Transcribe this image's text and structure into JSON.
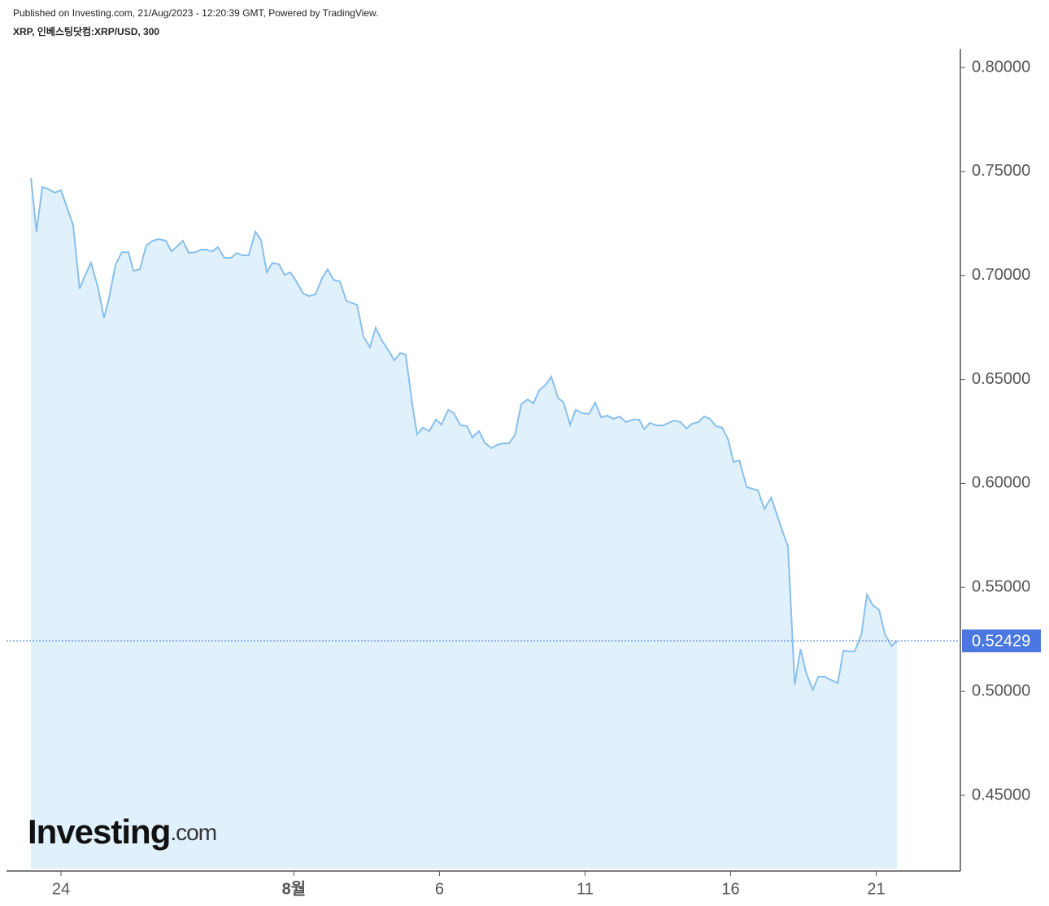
{
  "header": {
    "published": "Published on Investing.com, 21/Aug/2023 - 12:20:39 GMT, Powered by TradingView.",
    "symbol": "XRP, 인베스팅닷컴:XRP/USD, 300"
  },
  "logo": {
    "name": "Investing",
    "suffix": ".com"
  },
  "chart_data": {
    "type": "area",
    "x": [
      22.97,
      23.16,
      23.36,
      23.55,
      23.78,
      24.0,
      24.42,
      24.64,
      24.81,
      25.03,
      25.26,
      25.48,
      25.65,
      25.87,
      26.09,
      26.32,
      26.49,
      26.71,
      26.93,
      27.15,
      27.37,
      27.6,
      27.8,
      27.99,
      28.19,
      28.39,
      28.61,
      28.8,
      29.0,
      29.2,
      29.39,
      29.61,
      29.84,
      30.03,
      30.23,
      30.45,
      30.68,
      30.87,
      31.07,
      31.26,
      31.49,
      31.68,
      31.88,
      32.07,
      32.32,
      32.52,
      32.74,
      32.97,
      33.16,
      33.36,
      33.58,
      33.8,
      34.17,
      34.39,
      34.61,
      34.81,
      35.01,
      35.23,
      35.45,
      35.65,
      35.84,
      36.07,
      36.23,
      36.43,
      36.65,
      36.88,
      37.07,
      37.3,
      37.49,
      37.72,
      37.94,
      38.13,
      38.36,
      38.55,
      38.78,
      38.97,
      39.2,
      39.39,
      39.59,
      39.81,
      40.03,
      40.23,
      40.42,
      40.65,
      40.84,
      41.07,
      41.26,
      41.49,
      41.68,
      41.91,
      42.13,
      42.35,
      42.55,
      42.77,
      42.97,
      43.19,
      43.41,
      43.64,
      43.86,
      44.03,
      44.22,
      44.45,
      44.67,
      44.87,
      45.06,
      45.28,
      45.48,
      45.68,
      45.9,
      46.09,
      46.29,
      46.49,
      46.71,
      46.91,
      47.1,
      47.3,
      47.55,
      47.94,
      48.16,
      48.39,
      48.58,
      48.78,
      48.97,
      49.2,
      49.4,
      49.59,
      49.82,
      50.01,
      50.23,
      50.45,
      50.68,
      50.87,
      51.07,
      51.26,
      51.49,
      51.68,
      51.88,
      52.1,
      52.3,
      52.53,
      52.72
    ],
    "series": [
      {
        "name": "XRP/USD",
        "color": "#88bfec",
        "fill": "#e1f1fb",
        "values": [
          0.7468,
          0.721,
          0.7425,
          0.7417,
          0.7398,
          0.741,
          0.7241,
          0.6936,
          0.6995,
          0.7061,
          0.6948,
          0.6796,
          0.6889,
          0.705,
          0.7112,
          0.7112,
          0.7022,
          0.703,
          0.7144,
          0.7167,
          0.7175,
          0.7167,
          0.7116,
          0.714,
          0.7167,
          0.7108,
          0.7112,
          0.7124,
          0.7124,
          0.7116,
          0.7136,
          0.7085,
          0.7085,
          0.7108,
          0.7097,
          0.7097,
          0.721,
          0.7171,
          0.7015,
          0.7061,
          0.7054,
          0.7003,
          0.7015,
          0.6975,
          0.6913,
          0.6901,
          0.6909,
          0.6987,
          0.703,
          0.6979,
          0.6971,
          0.6878,
          0.6858,
          0.6706,
          0.6655,
          0.6749,
          0.669,
          0.6643,
          0.6592,
          0.6627,
          0.662,
          0.6377,
          0.6236,
          0.6268,
          0.6252,
          0.6307,
          0.6283,
          0.6354,
          0.6338,
          0.628,
          0.6276,
          0.6221,
          0.6252,
          0.6197,
          0.617,
          0.6185,
          0.6193,
          0.6193,
          0.6232,
          0.6381,
          0.6404,
          0.6385,
          0.6447,
          0.6475,
          0.6514,
          0.6412,
          0.6389,
          0.6283,
          0.6354,
          0.6338,
          0.6334,
          0.6389,
          0.6318,
          0.6326,
          0.6311,
          0.6322,
          0.6295,
          0.6307,
          0.6307,
          0.626,
          0.6291,
          0.6279,
          0.6279,
          0.6291,
          0.6303,
          0.6295,
          0.6264,
          0.6287,
          0.6295,
          0.6322,
          0.6311,
          0.6276,
          0.6268,
          0.6213,
          0.6103,
          0.6111,
          0.5982,
          0.5967,
          0.5877,
          0.5932,
          0.5853,
          0.5771,
          0.5697,
          0.5032,
          0.5204,
          0.5091,
          0.5008,
          0.5071,
          0.5071,
          0.5055,
          0.504,
          0.5196,
          0.5192,
          0.5192,
          0.5274,
          0.5466,
          0.5415,
          0.5392,
          0.5274,
          0.5219,
          0.5243
        ]
      }
    ],
    "last_price": 0.52429,
    "last_price_color": "#4a78e0",
    "xlim": [
      22.13,
      54.89
    ],
    "xticks": [
      {
        "value": 24,
        "label": "24"
      },
      {
        "value": 32,
        "label": "8월"
      },
      {
        "value": 37,
        "label": "6"
      },
      {
        "value": 42,
        "label": "11"
      },
      {
        "value": 47,
        "label": "16"
      },
      {
        "value": 52,
        "label": "21"
      }
    ],
    "ylim": [
      0.4148,
      0.809
    ],
    "yticks": [
      {
        "value": 0.45,
        "label": "0.45000"
      },
      {
        "value": 0.5,
        "label": "0.50000"
      },
      {
        "value": 0.55,
        "label": "0.55000"
      },
      {
        "value": 0.6,
        "label": "0.60000"
      },
      {
        "value": 0.65,
        "label": "0.65000"
      },
      {
        "value": 0.7,
        "label": "0.70000"
      },
      {
        "value": 0.75,
        "label": "0.75000"
      },
      {
        "value": 0.8,
        "label": "0.80000"
      }
    ]
  }
}
